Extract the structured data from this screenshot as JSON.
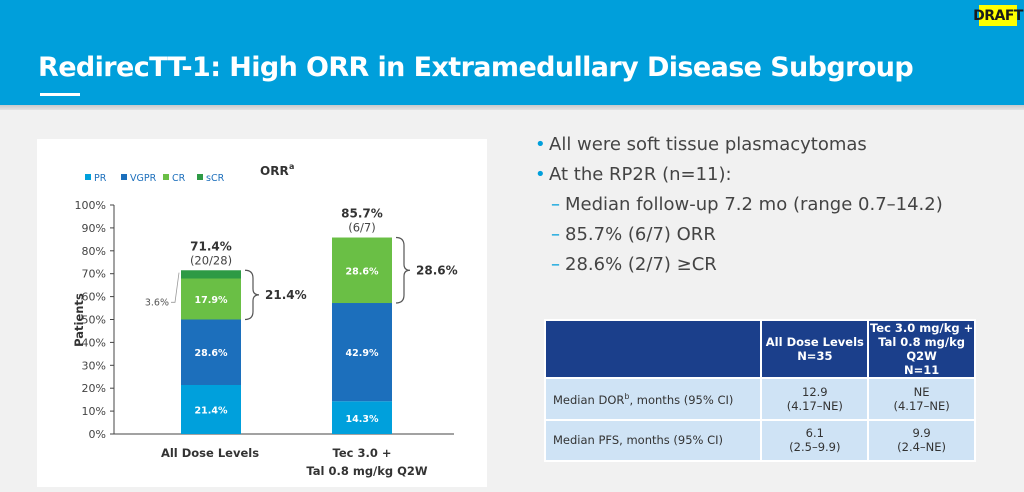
{
  "header": {
    "title": "RedirecTT-1: High ORR in Extramedullary Disease Subgroup",
    "badge": "DRAFT"
  },
  "colors": {
    "header_bg": "#009fdb",
    "PR": "#00a0dc",
    "VGPR": "#1c6fbc",
    "CR": "#6abf45",
    "sCR": "#2e9a45",
    "table_header": "#1b3f8b",
    "table_cell": "#cfe3f5"
  },
  "chart_data": {
    "type": "bar",
    "stacked": true,
    "title": "ORR",
    "title_superscript": "a",
    "ylabel": "Patients",
    "xlabel": "",
    "ylim": [
      0,
      100
    ],
    "yticks": [
      "0%",
      "10%",
      "20%",
      "30%",
      "40%",
      "50%",
      "60%",
      "70%",
      "80%",
      "90%",
      "100%"
    ],
    "legend": {
      "position": "top-left",
      "entries": [
        "PR",
        "VGPR",
        "CR",
        "sCR"
      ]
    },
    "categories": [
      "All Dose Levels",
      "Tec 3.0 + Tal 0.8 mg/kg Q2W"
    ],
    "category_lines": [
      [
        "All Dose Levels"
      ],
      [
        "Tec 3.0 +",
        "Tal 0.8 mg/kg Q2W"
      ]
    ],
    "series": [
      {
        "name": "PR",
        "values": [
          21.4,
          14.3
        ],
        "labels": [
          "21.4%",
          "14.3%"
        ]
      },
      {
        "name": "VGPR",
        "values": [
          28.6,
          42.9
        ],
        "labels": [
          "28.6%",
          "42.9%"
        ]
      },
      {
        "name": "CR",
        "values": [
          17.9,
          28.6
        ],
        "labels": [
          "17.9%",
          "28.6%"
        ]
      },
      {
        "name": "sCR",
        "values": [
          3.6,
          0
        ],
        "labels": [
          "3.6%",
          ""
        ]
      }
    ],
    "totals": [
      {
        "pct": "71.4%",
        "fraction": "(20/28)"
      },
      {
        "pct": "85.7%",
        "fraction": "(6/7)"
      }
    ],
    "bracket_labels": [
      "21.4%",
      "28.6%"
    ]
  },
  "bullets": [
    {
      "level": 1,
      "marker": "•",
      "text": "All were soft tissue plasmacytomas"
    },
    {
      "level": 1,
      "marker": "•",
      "text": "At the RP2R (n=11):"
    },
    {
      "level": 2,
      "marker": "–",
      "text": "Median follow-up 7.2 mo (range 0.7–14.2)"
    },
    {
      "level": 2,
      "marker": "–",
      "text": "85.7% (6/7) ORR"
    },
    {
      "level": 2,
      "marker": "–",
      "text": "28.6% (2/7) ≥CR"
    }
  ],
  "table": {
    "headers": [
      "",
      [
        "All Dose Levels",
        "N=35"
      ],
      [
        "Tec 3.0 mg/kg +",
        "Tal 0.8 mg/kg",
        "Q2W",
        "N=11"
      ]
    ],
    "rows": [
      {
        "label": "Median DOR",
        "label_sup": "b",
        "label_suffix": ", months (95% CI)",
        "values": [
          [
            "12.9",
            "(4.17–NE)"
          ],
          [
            "NE",
            "(4.17–NE)"
          ]
        ]
      },
      {
        "label": "Median PFS",
        "label_sup": "",
        "label_suffix": ", months (95% CI)",
        "values": [
          [
            "6.1",
            "(2.5–9.9)"
          ],
          [
            "9.9",
            "(2.4–NE)"
          ]
        ]
      }
    ]
  }
}
